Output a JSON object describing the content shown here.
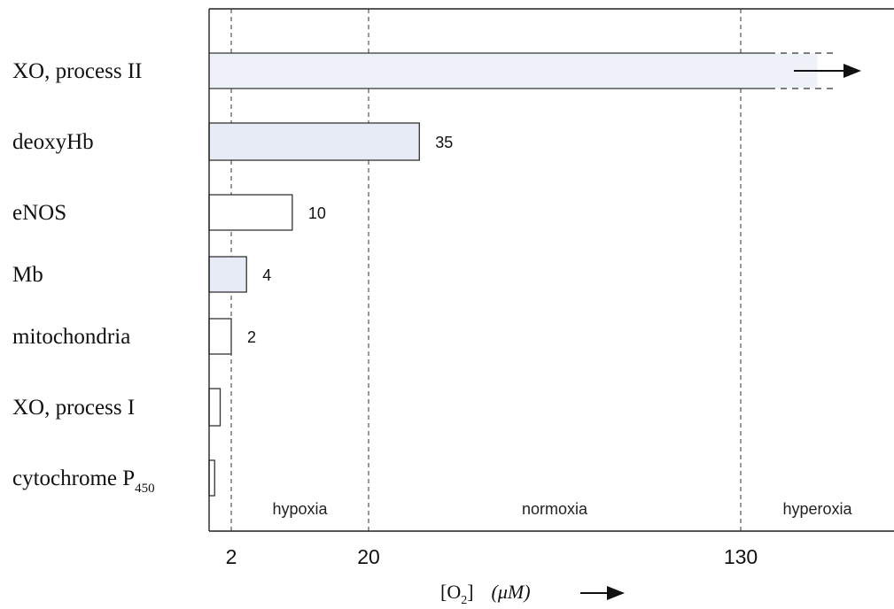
{
  "chart_data": {
    "type": "bar",
    "orientation": "horizontal",
    "categories": [
      "XO, process II",
      "deoxyHb",
      "eNOS",
      "Mb",
      "mitochondria",
      "XO, process I",
      "cytochrome P450"
    ],
    "category_labels": [
      {
        "main": "XO, process II",
        "sub": ""
      },
      {
        "main": "deoxyHb",
        "sub": ""
      },
      {
        "main": "eNOS",
        "sub": ""
      },
      {
        "main": "Mb",
        "sub": ""
      },
      {
        "main": "mitochondria",
        "sub": ""
      },
      {
        "main": "XO, process I",
        "sub": ""
      },
      {
        "main": "cytochrome P",
        "sub": "450"
      }
    ],
    "values": [
      150,
      35,
      10,
      4,
      2,
      1,
      0.5
    ],
    "value_labels": [
      "",
      "35",
      "10",
      "4",
      "2",
      "",
      ""
    ],
    "bar_fill": [
      "#eef1f8",
      "#e6ebf5",
      "#ffffff",
      "#e6ebf5",
      "#ffffff",
      "#ffffff",
      "#ffffff"
    ],
    "open_ended": [
      true,
      false,
      false,
      false,
      false,
      false,
      false
    ],
    "x_ticks": [
      {
        "value": 2,
        "label": "2"
      },
      {
        "value": 20,
        "label": "20"
      },
      {
        "value": 130,
        "label": "130"
      }
    ],
    "regions": [
      {
        "label": "hypoxia",
        "from": 2,
        "to": 20
      },
      {
        "label": "normoxia",
        "from": 20,
        "to": 130
      },
      {
        "label": "hyperoxia",
        "from": 130,
        "to": 170
      }
    ],
    "xlabel": {
      "prefix": "[O",
      "sub": "2",
      "suffix": "]",
      "unit": "(μM)"
    },
    "xlim": [
      0,
      170
    ],
    "reference_lines": [
      2,
      20,
      130
    ],
    "grid": false,
    "scale": "piecewise"
  }
}
